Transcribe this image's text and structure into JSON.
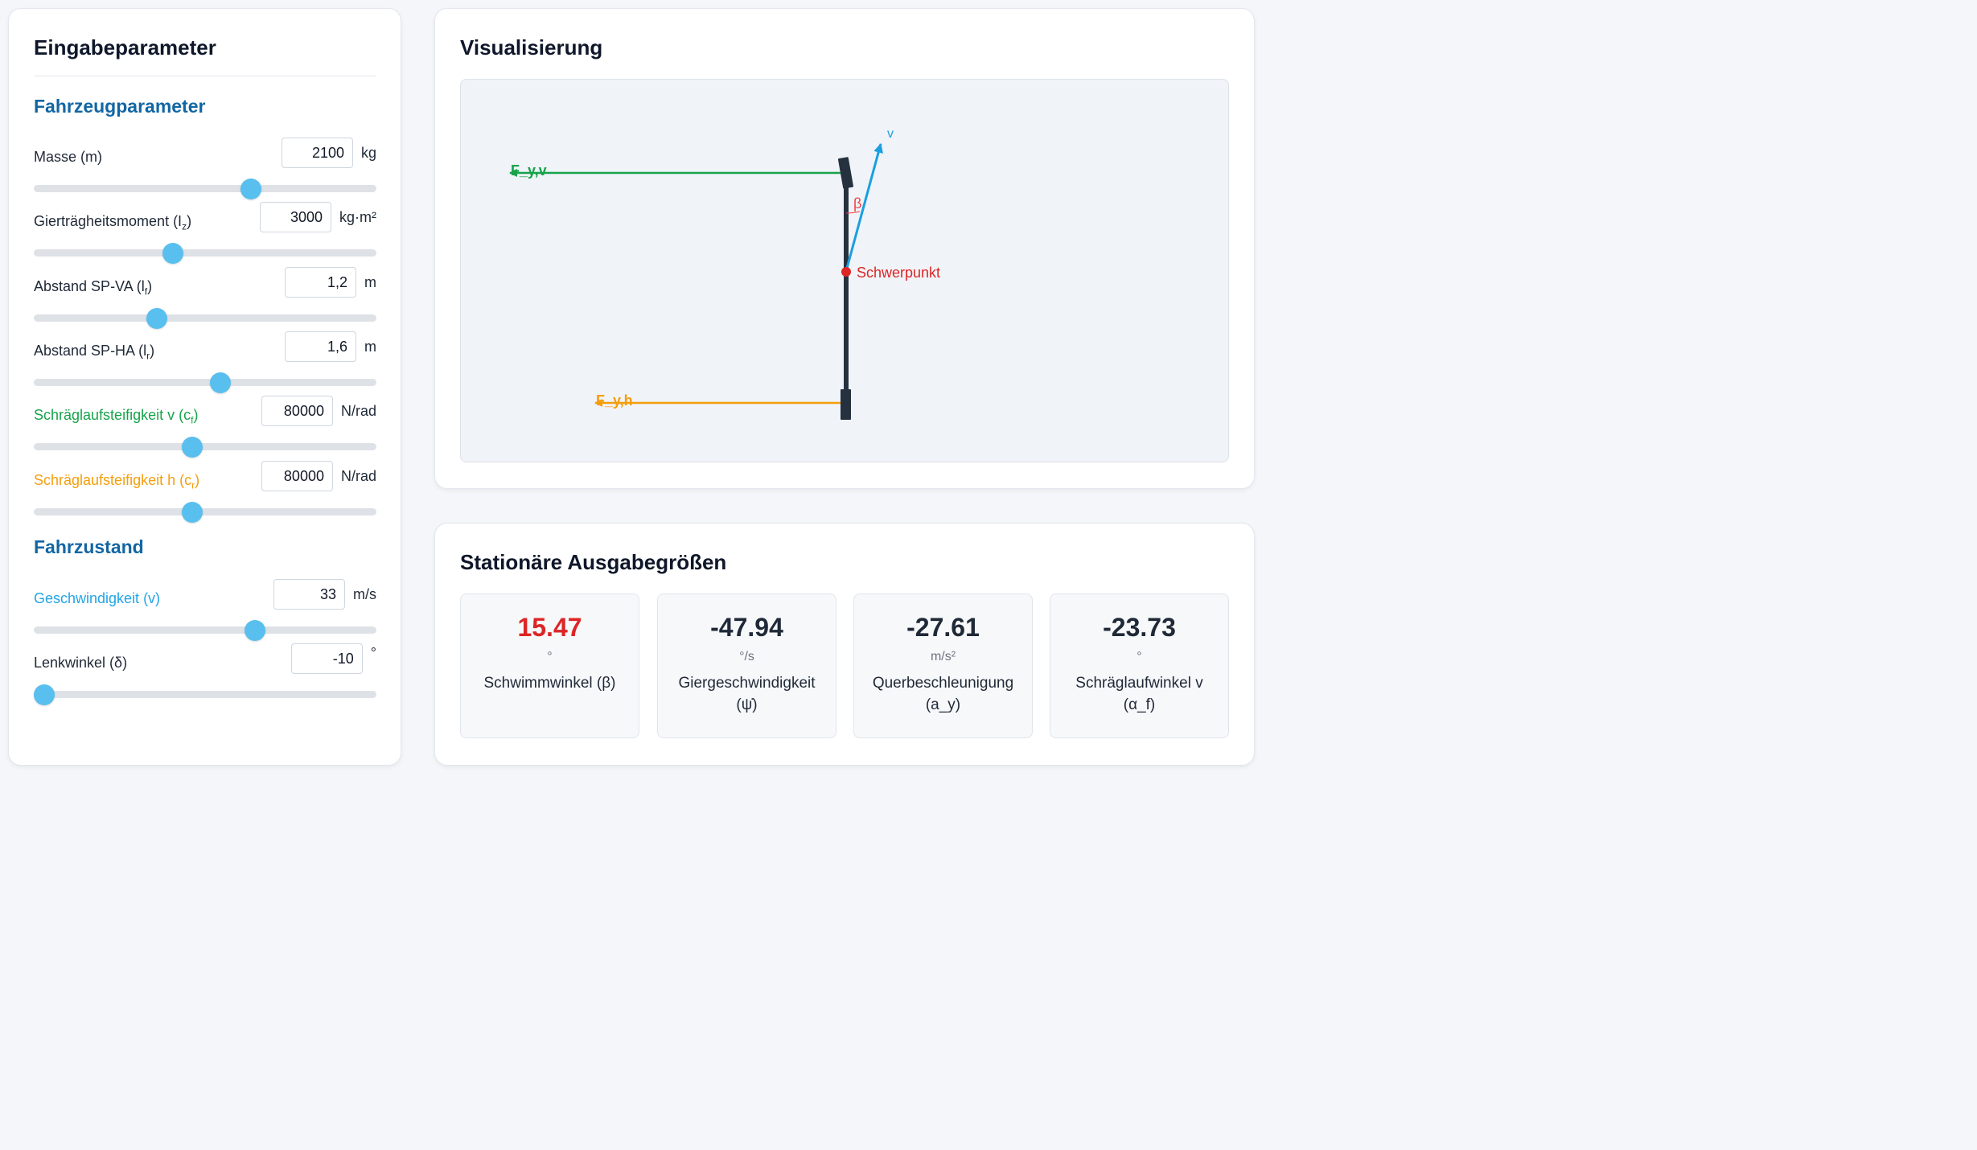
{
  "inputs": {
    "title": "Eingabeparameter",
    "sections": {
      "vehicle": "Fahrzeugparameter",
      "state": "Fahrzustand"
    },
    "params": {
      "mass": {
        "label": "Masse (m)",
        "value": "2100",
        "unit": "kg",
        "slider_fraction": 0.633
      },
      "inertia": {
        "label_main": "Gierträgheitsmoment (I",
        "label_sub": "z",
        "label_end": ")",
        "value": "3000",
        "unit": "kg·m²",
        "slider_fraction": 0.406
      },
      "lf": {
        "label_main": "Abstand SP-VA (l",
        "label_sub": "f",
        "label_end": ")",
        "value": "1,2",
        "unit": "m",
        "slider_fraction": 0.359
      },
      "lr": {
        "label_main": "Abstand SP-HA (l",
        "label_sub": "r",
        "label_end": ")",
        "value": "1,6",
        "unit": "m",
        "slider_fraction": 0.545
      },
      "cf": {
        "label_main": "Schräglaufsteifigkeit v (c",
        "label_sub": "f",
        "label_end": ")",
        "value": "80000",
        "unit": "N/rad",
        "slider_fraction": 0.462
      },
      "cr": {
        "label_main": "Schräglaufsteifigkeit h (c",
        "label_sub": "r",
        "label_end": ")",
        "value": "80000",
        "unit": "N/rad",
        "slider_fraction": 0.462
      },
      "speed": {
        "label": "Geschwindigkeit (v)",
        "value": "33",
        "unit": "m/s",
        "slider_fraction": 0.645
      },
      "steer": {
        "label": "Lenkwinkel (δ)",
        "value": "-10",
        "unit": "°",
        "slider_fraction": 0.03
      }
    }
  },
  "visualization": {
    "title": "Visualisierung",
    "labels": {
      "velocity": "v",
      "beta": "β",
      "cog": "Schwerpunkt",
      "force_front": "F_y,v",
      "force_rear": "F_y,h"
    },
    "colors": {
      "front_force": "#16a34a",
      "rear_force": "#f59e0b",
      "velocity": "#1a9fe0",
      "cog": "#dc2626",
      "body": "#263140"
    }
  },
  "outputs": {
    "title": "Stationäre Ausgabegrößen",
    "metrics": [
      {
        "value": "15.47",
        "unit": "°",
        "label_line1": "Schwimmwinkel (β)",
        "label_line2": ""
      },
      {
        "value": "-47.94",
        "unit": "°/s",
        "label_line1": "Giergeschwindigkeit",
        "label_line2": "(ψ̇)"
      },
      {
        "value": "-27.61",
        "unit": "m/s²",
        "label_line1": "Querbeschleunigung",
        "label_line2": "(a_y)"
      },
      {
        "value": "-23.73",
        "unit": "°",
        "label_line1": "Schräglaufwinkel v",
        "label_line2": "(α_f)"
      }
    ]
  }
}
